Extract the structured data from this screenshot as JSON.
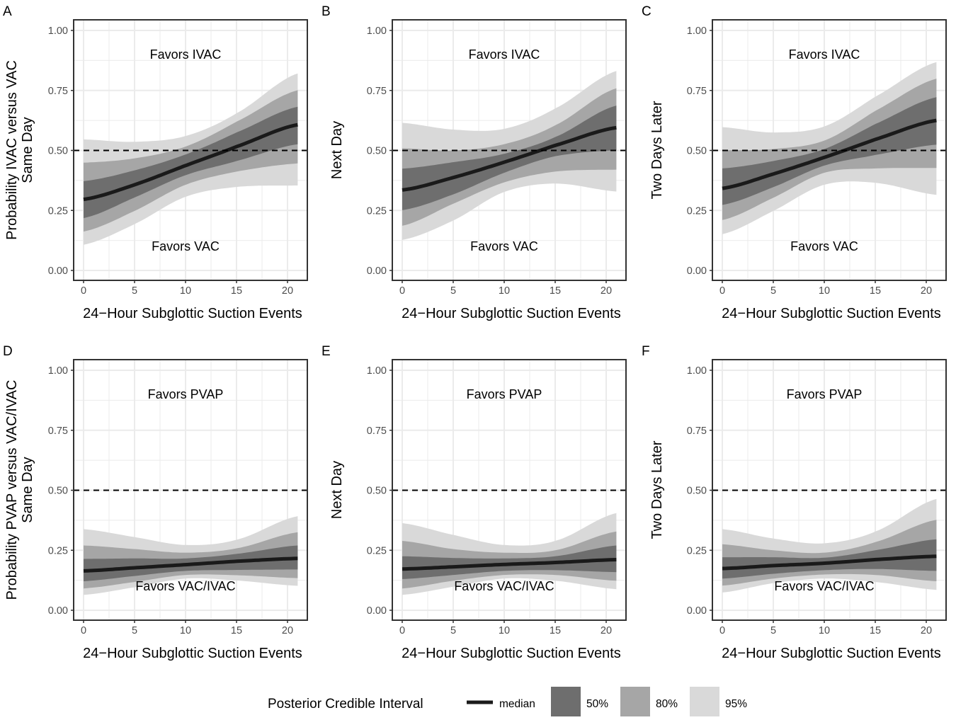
{
  "colors": {
    "ci95": "#d9d9d9",
    "ci80": "#a6a6a6",
    "ci50": "#6e6e6e",
    "median": "#1a1a1a",
    "grid": "#ebebeb",
    "border": "#333333"
  },
  "legend": {
    "title": "Posterior Credible Interval",
    "entries": [
      {
        "label": "median",
        "key": "median"
      },
      {
        "label": "50%",
        "key": "ci50"
      },
      {
        "label": "80%",
        "key": "ci80"
      },
      {
        "label": "95%",
        "key": "ci95"
      }
    ],
    "position": "bottom"
  },
  "chart_data": [
    {
      "panel": "A",
      "type": "area",
      "ylabel": [
        "Probability IVAC versus VAC",
        "Same Day"
      ],
      "xlabel": "24−Hour Subglottic Suction Events",
      "annotations": {
        "top": "Favors IVAC",
        "bottom": "Favors VAC"
      },
      "reference_line": 0.5,
      "xlim": [
        0,
        21
      ],
      "ylim": [
        0,
        1
      ],
      "xticks": [
        "0",
        "5",
        "10",
        "15",
        "20"
      ],
      "yticks": [
        "0.00",
        "0.25",
        "0.50",
        "0.75",
        "1.00"
      ],
      "x": [
        0,
        5,
        10,
        15,
        21
      ],
      "median": [
        0.296,
        0.357,
        0.437,
        0.516,
        0.607
      ],
      "ci50": {
        "lower": [
          0.218,
          0.304,
          0.397,
          0.456,
          0.526
        ],
        "upper": [
          0.372,
          0.417,
          0.483,
          0.575,
          0.682
        ]
      },
      "ci80": {
        "lower": [
          0.162,
          0.248,
          0.357,
          0.412,
          0.446
        ],
        "upper": [
          0.449,
          0.467,
          0.516,
          0.62,
          0.751
        ]
      },
      "ci95": {
        "lower": [
          0.107,
          0.193,
          0.307,
          0.348,
          0.354
        ],
        "upper": [
          0.546,
          0.536,
          0.56,
          0.655,
          0.821
        ]
      }
    },
    {
      "panel": "B",
      "type": "area",
      "ylabel": [
        "Next Day"
      ],
      "xlabel": "24−Hour Subglottic Suction Events",
      "annotations": {
        "top": "Favors IVAC",
        "bottom": "Favors VAC"
      },
      "reference_line": 0.5,
      "xlim": [
        0,
        21
      ],
      "ylim": [
        0,
        1
      ],
      "xticks": [
        "0",
        "5",
        "10",
        "15",
        "20"
      ],
      "yticks": [
        "0.00",
        "0.25",
        "0.50",
        "0.75",
        "1.00"
      ],
      "x": [
        0,
        5,
        10,
        15,
        21
      ],
      "median": [
        0.335,
        0.387,
        0.451,
        0.521,
        0.595
      ],
      "ci50": {
        "lower": [
          0.251,
          0.317,
          0.407,
          0.476,
          0.501
        ],
        "upper": [
          0.424,
          0.451,
          0.486,
          0.556,
          0.687
        ]
      },
      "ci80": {
        "lower": [
          0.186,
          0.278,
          0.367,
          0.412,
          0.42
        ],
        "upper": [
          0.509,
          0.5,
          0.526,
          0.605,
          0.759
        ]
      },
      "ci95": {
        "lower": [
          0.127,
          0.208,
          0.327,
          0.362,
          0.329
        ],
        "upper": [
          0.615,
          0.587,
          0.59,
          0.675,
          0.831
        ]
      }
    },
    {
      "panel": "C",
      "type": "area",
      "ylabel": [
        "Two Days Later"
      ],
      "xlabel": "24−Hour Subglottic Suction Events",
      "annotations": {
        "top": "Favors IVAC",
        "bottom": "Favors VAC"
      },
      "reference_line": 0.5,
      "xlim": [
        0,
        21
      ],
      "ylim": [
        0,
        1
      ],
      "xticks": [
        "0",
        "5",
        "10",
        "15",
        "20"
      ],
      "yticks": [
        "0.00",
        "0.25",
        "0.50",
        "0.75",
        "1.00"
      ],
      "x": [
        0,
        5,
        10,
        15,
        21
      ],
      "median": [
        0.342,
        0.402,
        0.471,
        0.546,
        0.625
      ],
      "ci50": {
        "lower": [
          0.273,
          0.347,
          0.437,
          0.481,
          0.524
        ],
        "upper": [
          0.425,
          0.456,
          0.506,
          0.61,
          0.722
        ]
      },
      "ci80": {
        "lower": [
          0.21,
          0.303,
          0.407,
          0.425,
          0.427
        ],
        "upper": [
          0.501,
          0.506,
          0.541,
          0.665,
          0.799
        ]
      },
      "ci95": {
        "lower": [
          0.151,
          0.248,
          0.357,
          0.365,
          0.315
        ],
        "upper": [
          0.597,
          0.575,
          0.6,
          0.724,
          0.868
        ]
      }
    },
    {
      "panel": "D",
      "type": "area",
      "ylabel": [
        "Probability PVAP versus VAC/IVAC",
        "Same Day"
      ],
      "xlabel": "24−Hour Subglottic Suction Events",
      "annotations": {
        "top": "Favors PVAP",
        "bottom": "Favors VAC/IVAC"
      },
      "reference_line": 0.5,
      "xlim": [
        0,
        21
      ],
      "ylim": [
        0,
        1
      ],
      "xticks": [
        "0",
        "5",
        "10",
        "15",
        "20"
      ],
      "yticks": [
        "0.00",
        "0.25",
        "0.50",
        "0.75",
        "1.00"
      ],
      "x": [
        0,
        5,
        10,
        15,
        21
      ],
      "median": [
        0.164,
        0.177,
        0.19,
        0.204,
        0.216
      ],
      "ci50": {
        "lower": [
          0.121,
          0.143,
          0.164,
          0.168,
          0.17
        ],
        "upper": [
          0.214,
          0.216,
          0.216,
          0.235,
          0.27
        ]
      },
      "ci80": {
        "lower": [
          0.091,
          0.118,
          0.147,
          0.146,
          0.134
        ],
        "upper": [
          0.27,
          0.255,
          0.24,
          0.258,
          0.325
        ]
      },
      "ci95": {
        "lower": [
          0.064,
          0.096,
          0.132,
          0.124,
          0.102
        ],
        "upper": [
          0.338,
          0.305,
          0.272,
          0.294,
          0.392
        ]
      }
    },
    {
      "panel": "E",
      "type": "area",
      "ylabel": [
        "Next Day"
      ],
      "xlabel": "24−Hour Subglottic Suction Events",
      "annotations": {
        "top": "Favors PVAP",
        "bottom": "Favors VAC/IVAC"
      },
      "reference_line": 0.5,
      "xlim": [
        0,
        21
      ],
      "ylim": [
        0,
        1
      ],
      "xticks": [
        "0",
        "5",
        "10",
        "15",
        "20"
      ],
      "yticks": [
        "0.00",
        "0.25",
        "0.50",
        "0.75",
        "1.00"
      ],
      "x": [
        0,
        5,
        10,
        15,
        21
      ],
      "median": [
        0.172,
        0.181,
        0.191,
        0.199,
        0.211
      ],
      "ci50": {
        "lower": [
          0.13,
          0.147,
          0.164,
          0.167,
          0.159
        ],
        "upper": [
          0.225,
          0.218,
          0.216,
          0.225,
          0.27
        ]
      },
      "ci80": {
        "lower": [
          0.091,
          0.123,
          0.147,
          0.147,
          0.123
        ],
        "upper": [
          0.289,
          0.255,
          0.24,
          0.25,
          0.328
        ]
      },
      "ci95": {
        "lower": [
          0.064,
          0.098,
          0.132,
          0.123,
          0.088
        ],
        "upper": [
          0.363,
          0.314,
          0.272,
          0.289,
          0.405
        ]
      }
    },
    {
      "panel": "F",
      "type": "area",
      "ylabel": [
        "Two Days Later"
      ],
      "xlabel": "24−Hour Subglottic Suction Events",
      "annotations": {
        "top": "Favors PVAP",
        "bottom": "Favors VAC/IVAC"
      },
      "reference_line": 0.5,
      "xlim": [
        0,
        21
      ],
      "ylim": [
        0,
        1
      ],
      "xticks": [
        "0",
        "5",
        "10",
        "15",
        "20"
      ],
      "yticks": [
        "0.00",
        "0.25",
        "0.50",
        "0.75",
        "1.00"
      ],
      "x": [
        0,
        5,
        10,
        15,
        21
      ],
      "median": [
        0.174,
        0.186,
        0.196,
        0.211,
        0.225
      ],
      "ci50": {
        "lower": [
          0.132,
          0.152,
          0.167,
          0.172,
          0.164
        ],
        "upper": [
          0.221,
          0.221,
          0.219,
          0.25,
          0.296
        ]
      },
      "ci80": {
        "lower": [
          0.103,
          0.132,
          0.149,
          0.147,
          0.121
        ],
        "upper": [
          0.275,
          0.25,
          0.24,
          0.284,
          0.377
        ]
      },
      "ci95": {
        "lower": [
          0.074,
          0.113,
          0.132,
          0.118,
          0.085
        ],
        "upper": [
          0.338,
          0.299,
          0.279,
          0.328,
          0.464
        ]
      }
    }
  ]
}
